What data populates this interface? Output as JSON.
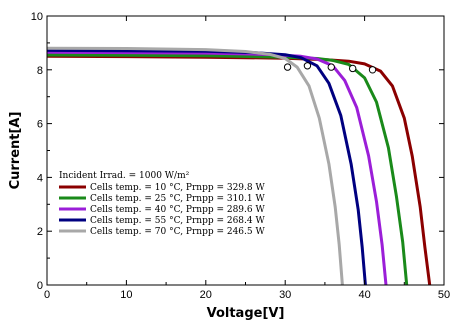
{
  "chart_data": {
    "type": "line",
    "xlabel": "Voltage[V]",
    "ylabel": "Current[A]",
    "xlim": [
      0,
      50
    ],
    "ylim": [
      0,
      10
    ],
    "xticks": [
      0,
      10,
      20,
      30,
      40,
      50
    ],
    "yticks": [
      0,
      2,
      4,
      6,
      8,
      10
    ],
    "grid": false,
    "legend_placement": "bottom-left",
    "legend_title": "Incident Irrad. = 1000 W/m²",
    "series": [
      {
        "name": "Cells temp. = 10 °C, Prnpp = 329.8 W",
        "color": "#8b0000",
        "x": [
          0,
          10,
          20,
          30,
          35,
          38,
          40,
          42,
          43.5,
          45,
          46,
          47,
          47.6,
          48.2
        ],
        "y": [
          8.5,
          8.49,
          8.47,
          8.43,
          8.38,
          8.32,
          8.22,
          7.95,
          7.4,
          6.2,
          4.8,
          2.9,
          1.4,
          0
        ],
        "mpp": [
          41,
          8.0
        ]
      },
      {
        "name": "Cells temp. = 25 °C, Prnpp = 310.1 W",
        "color": "#1a8a1a",
        "x": [
          0,
          10,
          20,
          30,
          34,
          36,
          38,
          40,
          41.5,
          43,
          44,
          44.8,
          45.3
        ],
        "y": [
          8.55,
          8.54,
          8.52,
          8.47,
          8.42,
          8.35,
          8.2,
          7.7,
          6.8,
          5.1,
          3.3,
          1.6,
          0
        ],
        "mpp": [
          38.5,
          8.05
        ]
      },
      {
        "name": "Cells temp. = 40 °C, Prnpp = 289.6 W",
        "color": "#9b1ed8",
        "x": [
          0,
          10,
          20,
          28,
          32,
          34,
          36,
          37.5,
          39,
          40.5,
          41.5,
          42.2,
          42.7
        ],
        "y": [
          8.65,
          8.64,
          8.62,
          8.57,
          8.5,
          8.4,
          8.15,
          7.6,
          6.6,
          4.8,
          3.1,
          1.5,
          0
        ],
        "mpp": [
          35.8,
          8.1
        ]
      },
      {
        "name": "Cells temp. = 55 °C, Prnpp = 268.4 W",
        "color": "#000080",
        "x": [
          0,
          10,
          20,
          26,
          30,
          32,
          34,
          35.5,
          37,
          38.3,
          39.2,
          39.7,
          40.1
        ],
        "y": [
          8.72,
          8.71,
          8.69,
          8.64,
          8.56,
          8.45,
          8.15,
          7.5,
          6.3,
          4.5,
          2.8,
          1.4,
          0
        ],
        "mpp": [
          32.8,
          8.15
        ]
      },
      {
        "name": "Cells temp. = 70 °C, Prnpp = 246.5 W",
        "color": "#a8a8a8",
        "x": [
          0,
          10,
          20,
          25,
          28,
          30,
          31.5,
          33,
          34.3,
          35.5,
          36.3,
          36.8,
          37.2
        ],
        "y": [
          8.8,
          8.79,
          8.75,
          8.68,
          8.58,
          8.42,
          8.1,
          7.4,
          6.2,
          4.5,
          2.9,
          1.5,
          0
        ],
        "mpp": [
          30.3,
          8.1
        ]
      }
    ]
  }
}
